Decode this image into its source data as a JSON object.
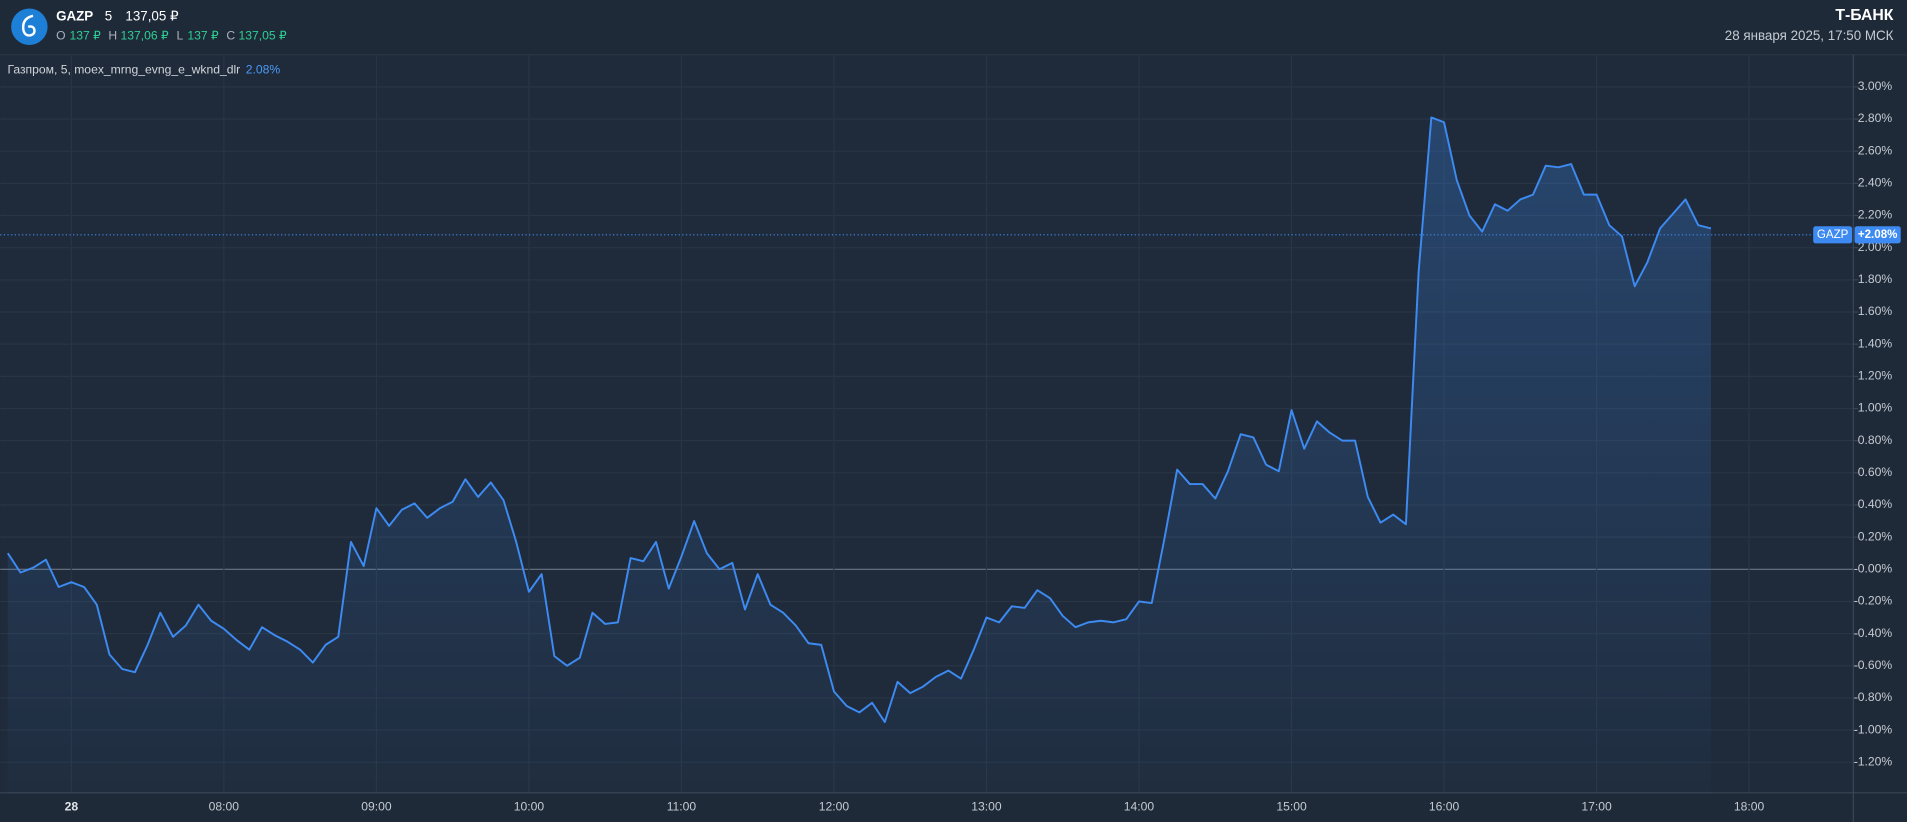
{
  "header": {
    "ticker": "GAZP",
    "interval": "5",
    "price": "137,05 ₽",
    "ohlc": [
      {
        "label": "O",
        "value": "137 ₽"
      },
      {
        "label": "H",
        "value": "137,06 ₽"
      },
      {
        "label": "L",
        "value": "137 ₽"
      },
      {
        "label": "C",
        "value": "137,05 ₽"
      }
    ],
    "brand": "Т‑БАНК",
    "datetime": "28 января 2025, 17:50 МСК"
  },
  "chart_data": {
    "type": "line",
    "legend": "Газпром, 5, moex_mrng_evng_e_wknd_dlr",
    "legend_value_label": "2.08%",
    "current": 2.08,
    "current_label": "+2.08%",
    "x": [
      "06:35",
      "06:40",
      "06:45",
      "06:50",
      "06:55",
      "07:00",
      "07:05",
      "07:10",
      "07:15",
      "07:20",
      "07:25",
      "07:30",
      "07:35",
      "07:40",
      "07:45",
      "07:50",
      "07:55",
      "08:00",
      "08:05",
      "08:10",
      "08:15",
      "08:20",
      "08:25",
      "08:30",
      "08:35",
      "08:40",
      "08:45",
      "08:50",
      "08:55",
      "09:00",
      "09:05",
      "09:10",
      "09:15",
      "09:20",
      "09:25",
      "09:30",
      "09:35",
      "09:40",
      "09:45",
      "09:50",
      "09:55",
      "10:00",
      "10:05",
      "10:10",
      "10:15",
      "10:20",
      "10:25",
      "10:30",
      "10:35",
      "10:40",
      "10:45",
      "10:50",
      "10:55",
      "11:00",
      "11:05",
      "11:10",
      "11:15",
      "11:20",
      "11:25",
      "11:30",
      "11:35",
      "11:40",
      "11:45",
      "11:50",
      "11:55",
      "12:00",
      "12:05",
      "12:10",
      "12:15",
      "12:20",
      "12:25",
      "12:30",
      "12:35",
      "12:40",
      "12:45",
      "12:50",
      "12:55",
      "13:00",
      "13:05",
      "13:10",
      "13:15",
      "13:20",
      "13:25",
      "13:30",
      "13:35",
      "13:40",
      "13:45",
      "13:50",
      "13:55",
      "14:00",
      "14:05",
      "14:10",
      "14:15",
      "14:20",
      "14:25",
      "14:30",
      "14:35",
      "14:40",
      "14:45",
      "14:50",
      "14:55",
      "15:00",
      "15:05",
      "15:10",
      "15:15",
      "15:20",
      "15:25",
      "15:30",
      "15:35",
      "15:40",
      "15:45",
      "15:50",
      "15:55",
      "16:00",
      "16:05",
      "16:10",
      "16:15",
      "16:20",
      "16:25",
      "16:30",
      "16:35",
      "16:40",
      "16:45",
      "16:50",
      "16:55",
      "17:00",
      "17:05",
      "17:10",
      "17:15",
      "17:20",
      "17:25",
      "17:30",
      "17:35",
      "17:40",
      "17:45"
    ],
    "series": [
      {
        "name": "GAZP",
        "color": "#3d8bf2",
        "values": [
          0.1,
          -0.02,
          0.01,
          0.06,
          -0.11,
          -0.08,
          -0.11,
          -0.22,
          -0.53,
          -0.62,
          -0.64,
          -0.47,
          -0.27,
          -0.42,
          -0.35,
          -0.22,
          -0.32,
          -0.37,
          -0.44,
          -0.5,
          -0.36,
          -0.41,
          -0.45,
          -0.5,
          -0.58,
          -0.47,
          -0.42,
          0.17,
          0.02,
          0.38,
          0.27,
          0.37,
          0.41,
          0.32,
          0.38,
          0.42,
          0.56,
          0.45,
          0.54,
          0.43,
          0.17,
          -0.14,
          -0.03,
          -0.54,
          -0.6,
          -0.55,
          -0.27,
          -0.34,
          -0.33,
          0.07,
          0.05,
          0.17,
          -0.12,
          0.08,
          0.3,
          0.1,
          0.0,
          0.04,
          -0.25,
          -0.03,
          -0.22,
          -0.27,
          -0.35,
          -0.46,
          -0.47,
          -0.76,
          -0.85,
          -0.89,
          -0.83,
          -0.95,
          -0.7,
          -0.77,
          -0.73,
          -0.67,
          -0.63,
          -0.68,
          -0.5,
          -0.3,
          -0.33,
          -0.23,
          -0.24,
          -0.13,
          -0.18,
          -0.29,
          -0.36,
          -0.33,
          -0.32,
          -0.33,
          -0.31,
          -0.2,
          -0.21,
          0.19,
          0.62,
          0.53,
          0.53,
          0.44,
          0.61,
          0.84,
          0.82,
          0.65,
          0.61,
          0.99,
          0.75,
          0.92,
          0.85,
          0.8,
          0.8,
          0.45,
          0.29,
          0.34,
          0.28,
          1.85,
          2.81,
          2.78,
          2.42,
          2.2,
          2.1,
          2.27,
          2.23,
          2.3,
          2.33,
          2.51,
          2.5,
          2.52,
          2.33,
          2.33,
          2.14,
          2.07,
          1.76,
          1.91,
          2.12,
          2.21,
          2.3,
          2.14,
          2.12
        ]
      }
    ],
    "xlim": [
      "06:32",
      "18:41"
    ],
    "xticks": [
      {
        "value": "07:00",
        "label": "28"
      },
      "08:00",
      "09:00",
      "10:00",
      "11:00",
      "12:00",
      "13:00",
      "14:00",
      "15:00",
      "16:00",
      "17:00",
      "18:00"
    ],
    "ylim": [
      -1.39,
      3.2
    ],
    "yticks": [
      {
        "value": -1.2,
        "label": "-1.20%"
      },
      {
        "value": -1,
        "label": "-1.00%"
      },
      {
        "value": -0.8,
        "label": "-0.80%"
      },
      {
        "value": -0.6,
        "label": "-0.60%"
      },
      {
        "value": -0.4,
        "label": "-0.40%"
      },
      {
        "value": -0.2,
        "label": "-0.20%"
      },
      {
        "value": 0,
        "label": "-0.00%"
      },
      {
        "value": 0.2,
        "label": "0.20%"
      },
      {
        "value": 0.4,
        "label": "0.40%"
      },
      {
        "value": 0.6,
        "label": "0.60%"
      },
      {
        "value": 0.8,
        "label": "0.80%"
      },
      {
        "value": 1,
        "label": "1.00%"
      },
      {
        "value": 1.2,
        "label": "1.20%"
      },
      {
        "value": 1.4,
        "label": "1.40%"
      },
      {
        "value": 1.6,
        "label": "1.60%"
      },
      {
        "value": 1.8,
        "label": "1.80%"
      },
      {
        "value": 2,
        "label": "2.00%"
      },
      {
        "value": 2.2,
        "label": "2.20%"
      },
      {
        "value": 2.4,
        "label": "2.40%"
      },
      {
        "value": 2.6,
        "label": "2.60%"
      },
      {
        "value": 2.8,
        "label": "2.80%"
      },
      {
        "value": 3,
        "label": "3.00%"
      }
    ],
    "grid": true
  }
}
